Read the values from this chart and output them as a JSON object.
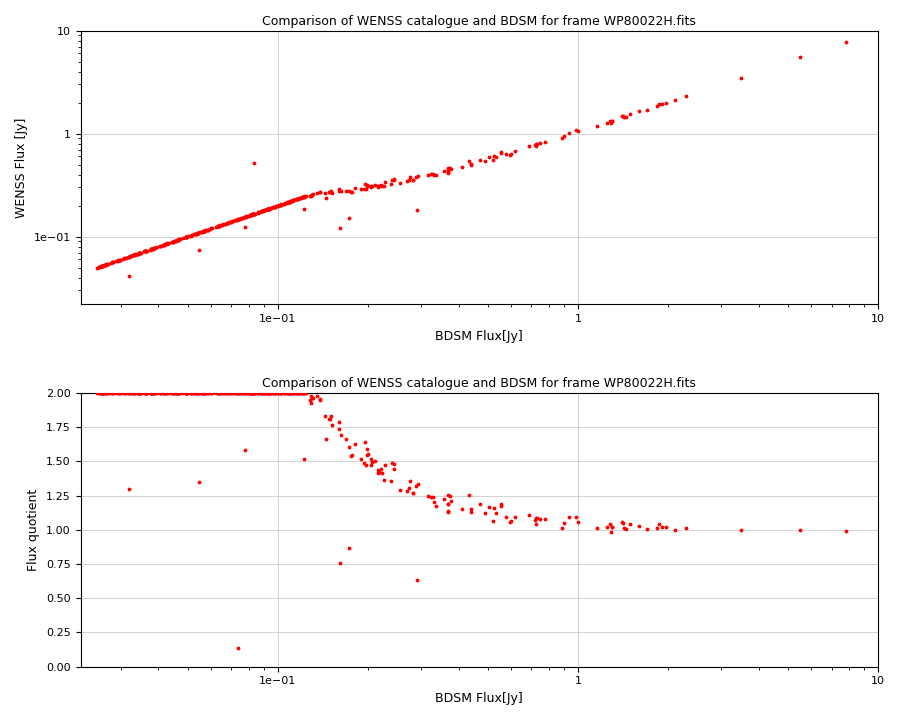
{
  "title": "Comparison of WENSS catalogue and BDSM for frame WP80022H.fits",
  "xlabel": "BDSM Flux[Jy]",
  "ylabel1": "WENSS Flux [Jy]",
  "ylabel2": "Flux quotient",
  "point_color": "red",
  "point_size": 3,
  "xlim_log": [
    0.022,
    10
  ],
  "ylim1_log": [
    0.022,
    10
  ],
  "ylim2": [
    0.0,
    2.0
  ],
  "grid_color": "#cccccc",
  "background_color": "white",
  "seed": 12345,
  "figsize": [
    9.0,
    7.2
  ],
  "dpi": 100
}
